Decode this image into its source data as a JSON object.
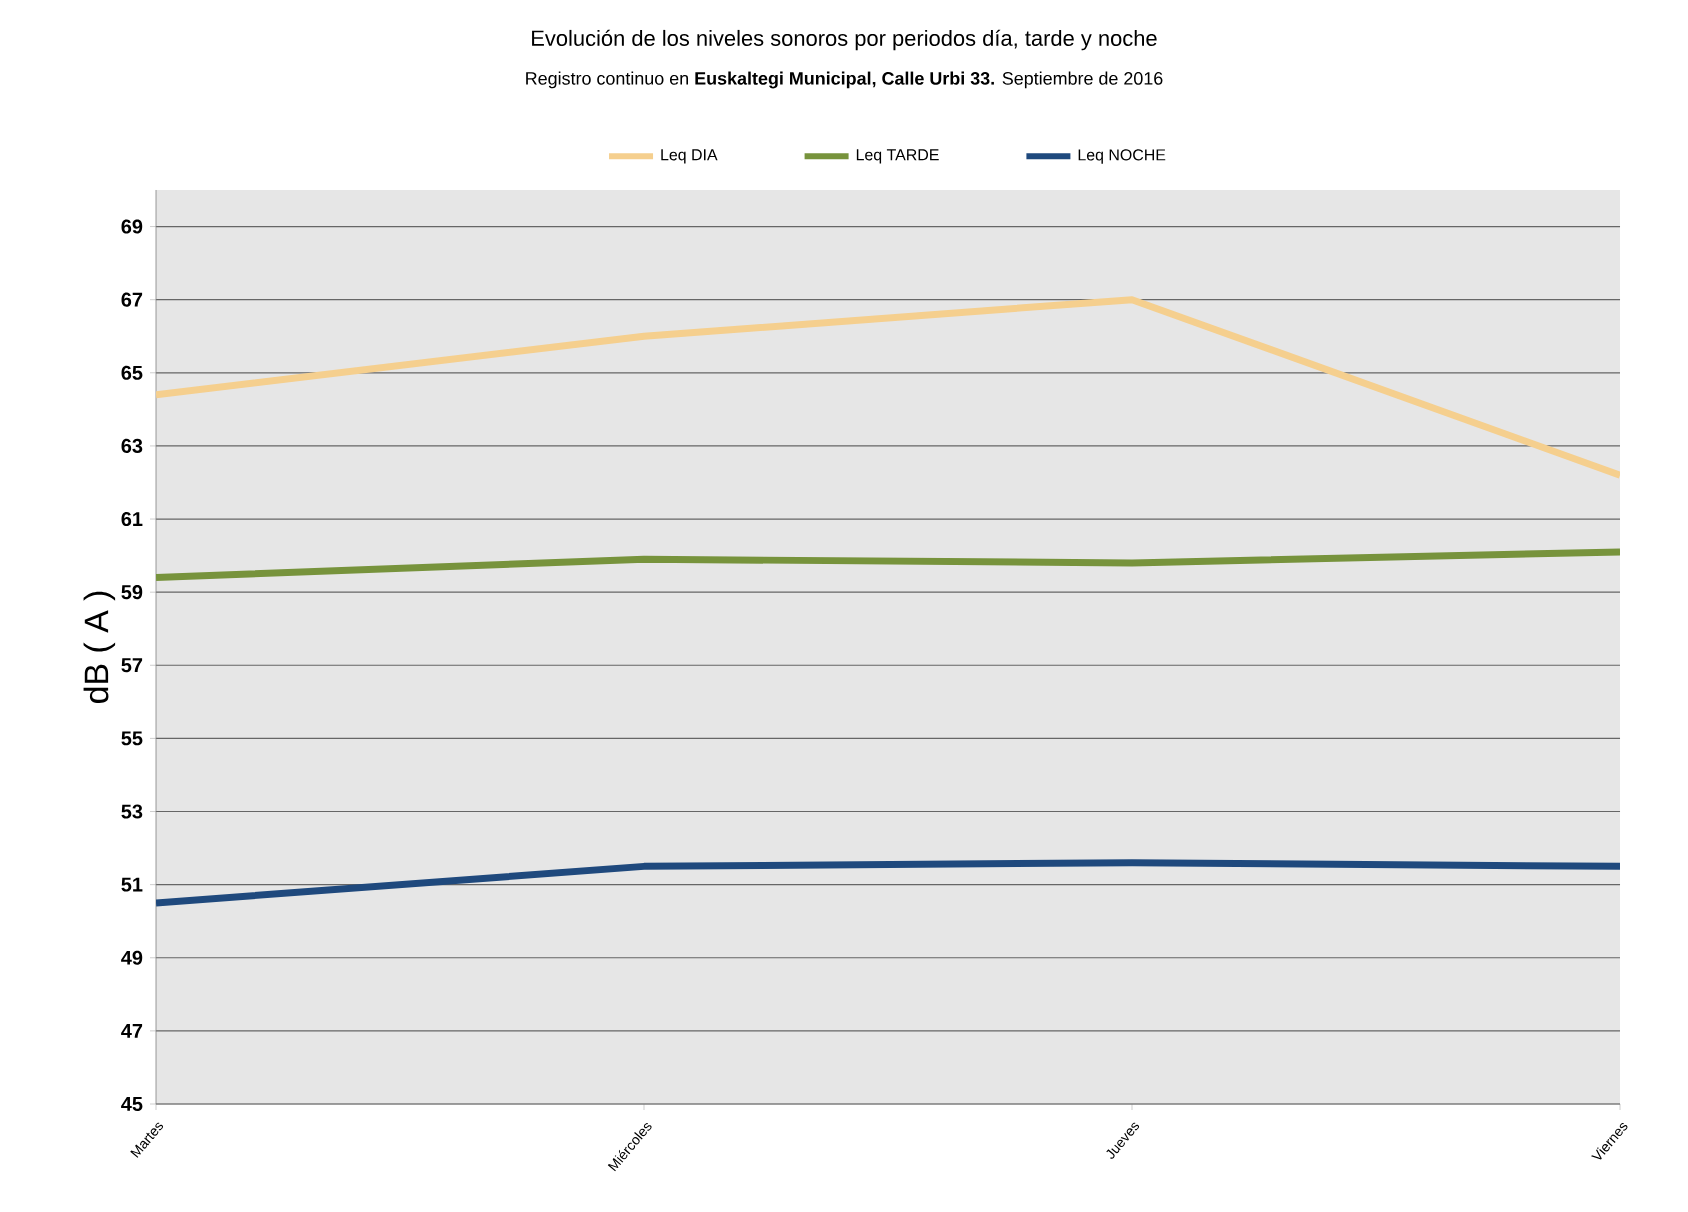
{
  "chart_data": {
    "type": "line",
    "title": "Evolución de los niveles sonoros por periodos día, tarde y noche",
    "subtitle": "Registro continuo en **Euskaltegi Municipal, Calle Urbi 33.** Septiembre de 2016",
    "ylabel": "dB ( A )",
    "categories": [
      "Martes",
      "Miércoles",
      "Jueves",
      "Viernes"
    ],
    "series": [
      {
        "name": "Leq DIA",
        "color": "#f5cf8e",
        "values": [
          64.4,
          66.0,
          67.0,
          62.2
        ]
      },
      {
        "name": "Leq TARDE",
        "color": "#77933c",
        "values": [
          59.4,
          59.9,
          59.8,
          60.1
        ]
      },
      {
        "name": "Leq NOCHE",
        "color": "#1f497d",
        "values": [
          50.5,
          51.5,
          51.6,
          51.5
        ]
      }
    ],
    "ylim": [
      45,
      70
    ],
    "yticks": [
      45,
      47,
      49,
      51,
      53,
      55,
      57,
      59,
      61,
      63,
      65,
      67,
      69
    ],
    "grid": "y",
    "legend": "top",
    "marker": "none",
    "line_style": "solid"
  }
}
